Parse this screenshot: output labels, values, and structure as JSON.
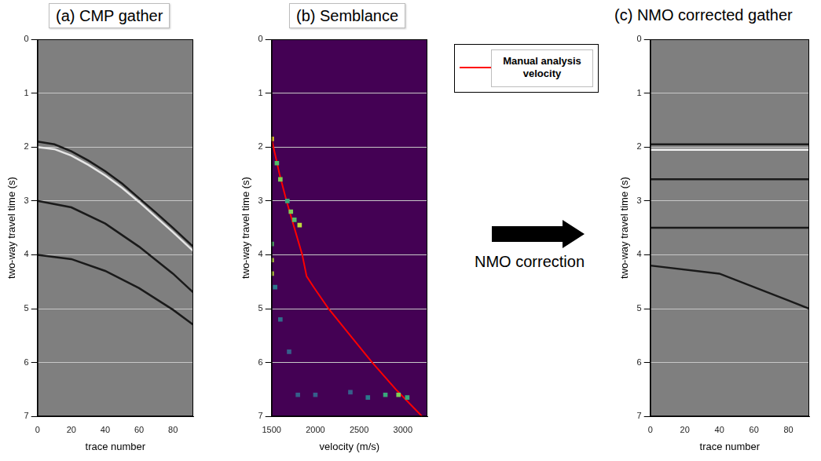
{
  "chart_data": [
    {
      "type": "line",
      "title": "(a) CMP gather",
      "x_label": "trace number",
      "y_label": "two-way travel time (s)",
      "xlim": [
        0,
        92
      ],
      "xticks": [
        0,
        20,
        40,
        60,
        80
      ],
      "ylim": [
        0,
        7
      ],
      "yticks": [
        0,
        1,
        2,
        3,
        4,
        5,
        6,
        7
      ],
      "grid": true,
      "series": [
        {
          "color": "#1a1a1a",
          "x": [
            0,
            10,
            20,
            30,
            40,
            50,
            60,
            70,
            80,
            92
          ],
          "values": [
            1.9,
            1.95,
            2.08,
            2.25,
            2.45,
            2.68,
            2.95,
            3.22,
            3.5,
            3.85
          ]
        },
        {
          "color": "#e6e6e6",
          "x": [
            0,
            10,
            20,
            30,
            40,
            50,
            60,
            70,
            80,
            92
          ],
          "values": [
            2.0,
            2.04,
            2.16,
            2.33,
            2.53,
            2.76,
            3.02,
            3.3,
            3.58,
            3.93
          ]
        },
        {
          "color": "#1a1a1a",
          "x": [
            0,
            20,
            40,
            60,
            80,
            92
          ],
          "values": [
            3.0,
            3.12,
            3.42,
            3.85,
            4.35,
            4.7
          ]
        },
        {
          "color": "#1a1a1a",
          "x": [
            0,
            20,
            40,
            60,
            80,
            92
          ],
          "values": [
            4.0,
            4.08,
            4.3,
            4.62,
            5.02,
            5.3
          ]
        }
      ]
    },
    {
      "type": "heatmap",
      "title": "(b) Semblance",
      "x_label": "velocity (m/s)",
      "y_label": "two-way travel time (s)",
      "xlim": [
        1500,
        3280
      ],
      "xticks": [
        1500,
        2000,
        2500,
        3000
      ],
      "ylim": [
        0,
        7
      ],
      "yticks": [
        0,
        1,
        2,
        3,
        4,
        5,
        6,
        7
      ],
      "grid": true,
      "legend": "right",
      "cells": {
        "x": [
          1500,
          1560,
          1600,
          1680,
          1720,
          1760,
          1820,
          1500,
          1500,
          1500,
          1540,
          1600,
          1700,
          2800,
          2950,
          3050,
          2600,
          2400,
          1800,
          2000
        ],
        "y": [
          1.85,
          2.3,
          2.6,
          3.0,
          3.2,
          3.35,
          3.45,
          3.8,
          4.1,
          4.35,
          4.6,
          5.2,
          5.8,
          6.6,
          6.6,
          6.65,
          6.65,
          6.55,
          6.6,
          6.6
        ],
        "values": [
          1.0,
          0.7,
          0.8,
          0.6,
          0.8,
          0.7,
          0.9,
          0.7,
          0.9,
          0.9,
          0.4,
          0.35,
          0.3,
          0.6,
          0.8,
          0.6,
          0.4,
          0.3,
          0.3,
          0.3
        ]
      },
      "series": [
        {
          "name": "Manual analysis velocity",
          "color": "#ff0000",
          "x": [
            1500,
            1590,
            1670,
            1760,
            1850,
            1900,
            1980,
            2150,
            2400,
            2650,
            2920,
            3220
          ],
          "values": [
            1.85,
            2.5,
            3.0,
            3.5,
            4.0,
            4.4,
            4.6,
            5.0,
            5.5,
            6.0,
            6.5,
            7.0
          ]
        }
      ],
      "annotations": [
        "NMO correction"
      ]
    },
    {
      "type": "line",
      "title": "(c) NMO corrected gather",
      "x_label": "trace number",
      "y_label": "two-way travel time (s)",
      "xlim": [
        0,
        92
      ],
      "xticks": [
        0,
        20,
        40,
        60,
        80
      ],
      "ylim": [
        0,
        7
      ],
      "yticks": [
        0,
        1,
        2,
        3,
        4,
        5,
        6,
        7
      ],
      "grid": true,
      "series": [
        {
          "color": "#1a1a1a",
          "x": [
            0,
            92
          ],
          "values": [
            1.95,
            1.95
          ]
        },
        {
          "color": "#f0f0f0",
          "x": [
            0,
            92
          ],
          "values": [
            2.05,
            2.05
          ]
        },
        {
          "color": "#1a1a1a",
          "x": [
            0,
            92
          ],
          "values": [
            2.6,
            2.6
          ]
        },
        {
          "color": "#1a1a1a",
          "x": [
            0,
            92
          ],
          "values": [
            3.5,
            3.5
          ]
        },
        {
          "color": "#1a1a1a",
          "x": [
            0,
            40,
            80,
            92
          ],
          "values": [
            4.2,
            4.35,
            4.85,
            5.0
          ]
        }
      ]
    }
  ]
}
